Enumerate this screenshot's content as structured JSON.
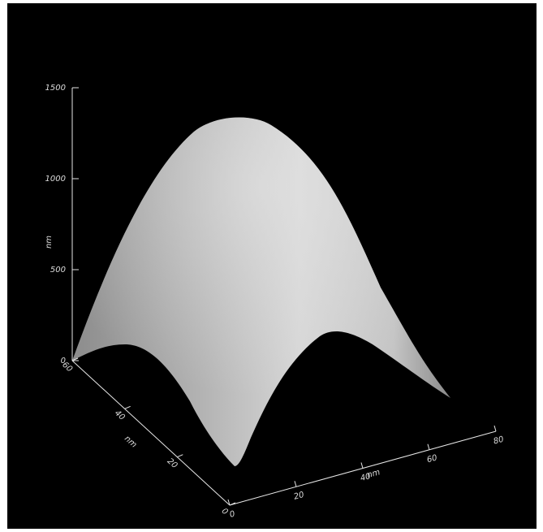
{
  "chart_data": {
    "type": "surface",
    "title": "",
    "z_axis": {
      "label": "nm",
      "ticks": [
        0,
        500,
        1000,
        1500
      ],
      "range": [
        0,
        1500
      ]
    },
    "x_axis": {
      "label": "nm",
      "ticks": [
        0,
        20,
        40,
        60,
        80
      ],
      "range": [
        0,
        80
      ]
    },
    "y_axis": {
      "label": "nm",
      "ticks": [
        0,
        20,
        40,
        60
      ],
      "range": [
        0,
        60
      ]
    },
    "surface": {
      "description_values": {
        "peak_height_nm": 1340,
        "edge_min_height_nm": 0
      }
    },
    "colors": {
      "background": "#000000",
      "axis": "#e6e6e6",
      "surface": "#bdbdbd"
    }
  }
}
